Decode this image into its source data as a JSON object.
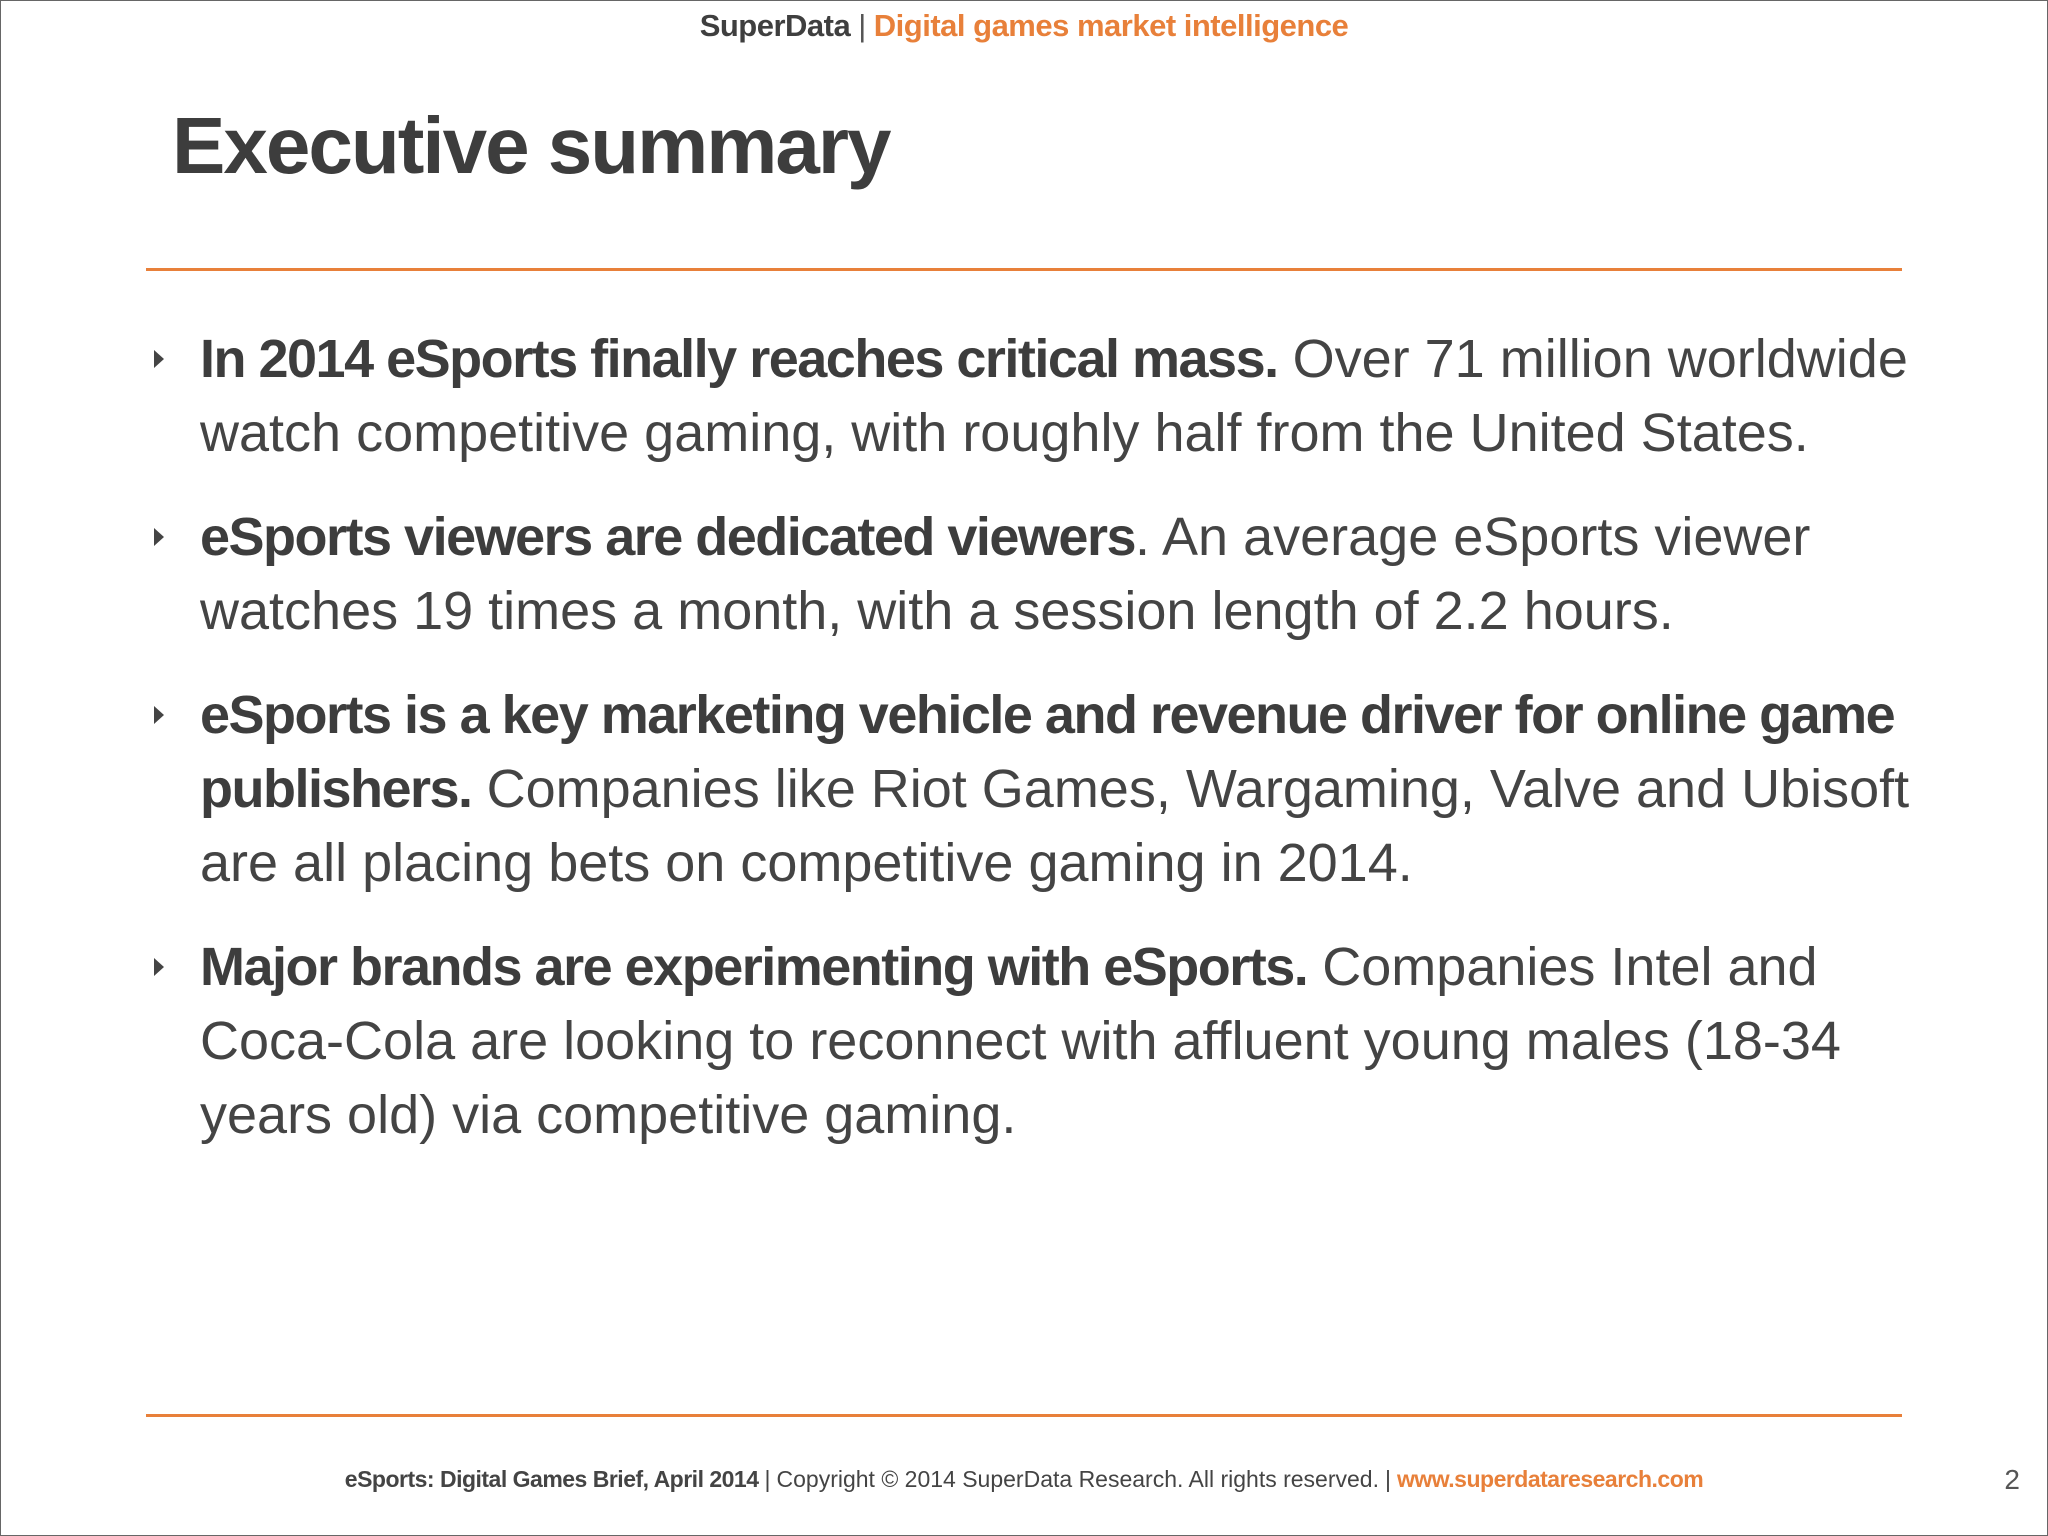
{
  "header": {
    "brand": "SuperData",
    "separator": "|",
    "tagline": "Digital games market intelligence"
  },
  "title": "Executive summary",
  "bullets": [
    {
      "bold": "In 2014 eSports finally reaches critical mass.",
      "text": "Over 71 million worldwide watch competitive gaming, with roughly half from the United States."
    },
    {
      "bold": "eSports viewers are dedicated viewers",
      "text": ". An average eSports viewer watches 19 times a month, with a session length of 2.2 hours."
    },
    {
      "bold": "eSports is a key marketing vehicle and revenue driver for online game publishers.",
      "text": "Companies like Riot Games, Wargaming, Valve and Ubisoft are all placing bets on competitive gaming in 2014."
    },
    {
      "bold": "Major brands are experimenting with eSports.",
      "text": "Companies Intel and Coca-Cola are looking to reconnect with affluent young males (18-34 years old) via competitive gaming."
    }
  ],
  "footer": {
    "report": "eSports: Digital Games Brief, April 2014",
    "separator": "|",
    "copyright": "Copyright © 2014 SuperData Research. All rights reserved.",
    "url": "www.superdataresearch.com",
    "page": "2"
  }
}
